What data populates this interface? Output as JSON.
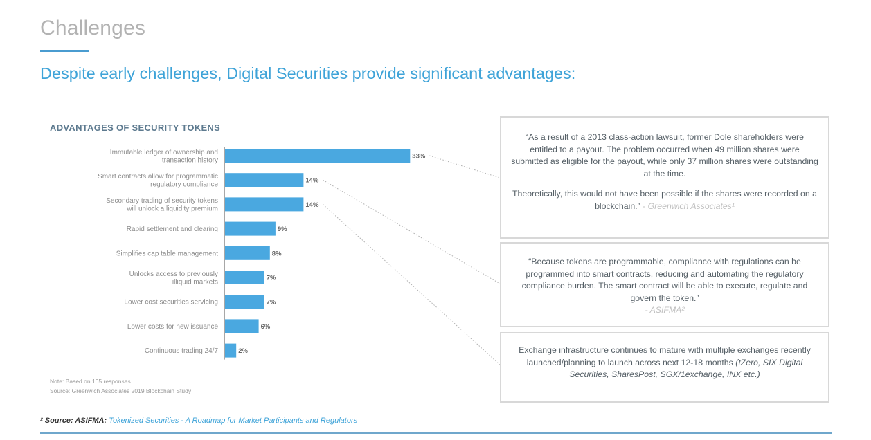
{
  "header": {
    "title": "Challenges",
    "subtitle": "Despite early challenges, Digital Securities provide significant advantages:"
  },
  "colors": {
    "accent": "#3ea3d8",
    "bar": "#4aa8e0",
    "title_gray": "#b3b3b3"
  },
  "chart_data": {
    "type": "bar",
    "orientation": "horizontal",
    "title": "ADVANTAGES OF SECURITY TOKENS",
    "categories": [
      [
        "Immutable ledger of ownership and",
        "transaction history"
      ],
      [
        "Smart contracts allow for programmatic",
        "regulatory compliance"
      ],
      [
        "Secondary trading of security tokens",
        "will unlock a liquidity premium"
      ],
      [
        "Rapid settlement and clearing"
      ],
      [
        "Simplifies cap table management"
      ],
      [
        "Unlocks access to previously",
        "illiquid markets"
      ],
      [
        "Lower cost securities servicing"
      ],
      [
        "Lower costs for new issuance"
      ],
      [
        "Continuous trading 24/7"
      ]
    ],
    "values": [
      33,
      14,
      14,
      9,
      8,
      7,
      7,
      6,
      2
    ],
    "value_labels": [
      "33%",
      "14%",
      "14%",
      "9%",
      "8%",
      "7%",
      "7%",
      "6%",
      "2%"
    ],
    "unit": "%",
    "xlim": [
      0,
      35
    ],
    "grid": false,
    "legend": "none",
    "xlabel": "",
    "ylabel": "",
    "notes": [
      "Note: Based on 105 responses.",
      "Source: Greenwich Associates 2019 Blockchain Study"
    ]
  },
  "quotes": [
    {
      "paragraphs": [
        "“As a result of a 2013 class-action lawsuit, former Dole shareholders were entitled to a payout. The problem occurred when 49 million shares were submitted as eligible for the payout, while only 37 million shares were outstanding at the time.",
        "Theoretically, this would not have been possible if the shares were recorded on a blockchain.”"
      ],
      "attribution": " - Greenwich Associates¹"
    },
    {
      "paragraphs": [
        "“Because tokens are programmable, compliance with regulations can be programmed into smart contracts, reducing and automating the regulatory compliance burden. The smart contract will be able to execute, regulate and govern the token.”"
      ],
      "attribution": "- ASIFMA²"
    },
    {
      "text": "Exchange infrastructure continues to mature with multiple exchanges recently launched/planning to launch across next 12-18 months ",
      "italic": "(tZero, SIX Digital Securities, SharesPost, SGX/1exchange, INX etc.)"
    }
  ],
  "footnote": {
    "marker": "²",
    "source_label": " Source: ASIFMA:",
    "link_text": " Tokenized Securities - A Roadmap for Market Participants and Regulators"
  }
}
